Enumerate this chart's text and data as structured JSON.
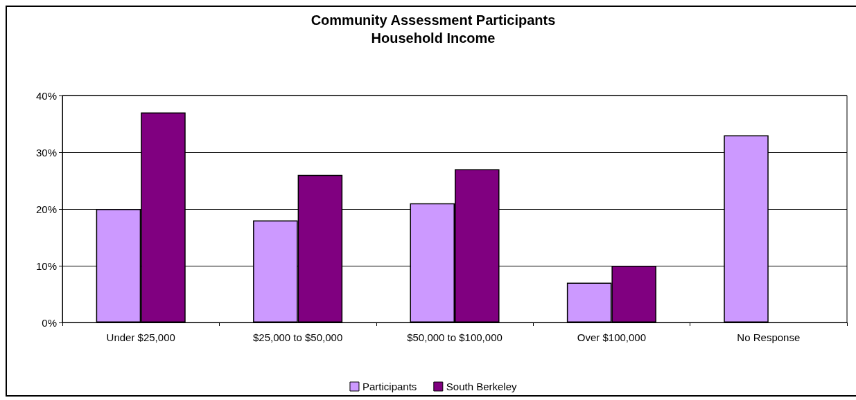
{
  "chart_data": {
    "type": "bar",
    "title": "Community Assessment Participants",
    "subtitle": "Household Income",
    "categories": [
      "Under $25,000",
      "$25,000 to $50,000",
      "$50,000 to $100,000",
      "Over $100,000",
      "No Response"
    ],
    "series": [
      {
        "name": "Participants",
        "color": "#cc99ff",
        "values": [
          20,
          18,
          21,
          7,
          33
        ]
      },
      {
        "name": "South Berkeley",
        "color": "#800080",
        "values": [
          37,
          26,
          27,
          10,
          null
        ]
      }
    ],
    "ylim": [
      0,
      40
    ],
    "yticks": [
      {
        "value": 0,
        "label": "0%"
      },
      {
        "value": 10,
        "label": "10%"
      },
      {
        "value": 20,
        "label": "20%"
      },
      {
        "value": 30,
        "label": "30%"
      },
      {
        "value": 40,
        "label": "40%"
      }
    ],
    "grid": "y",
    "legend": "bottom"
  }
}
